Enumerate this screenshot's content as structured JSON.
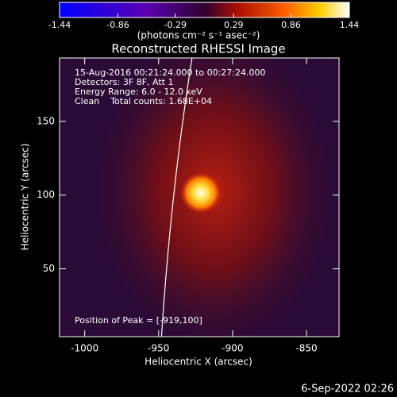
{
  "chart_data": {
    "type": "image",
    "title": "Reconstructed RHESSI Image",
    "colorbar": {
      "lim": [
        -1.44,
        1.44
      ],
      "ticks": [
        -1.44,
        -0.86,
        -0.29,
        0.29,
        0.86,
        1.44
      ],
      "label": "(photons cm⁻² s⁻¹ asec⁻²)"
    },
    "x_label": "Heliocentric X (arcsec)",
    "y_label": "Heliocentric Y (arcsec)",
    "xlim": [
      -1017,
      -828
    ],
    "ylim": [
      4,
      193
    ],
    "xticks": [
      -1000,
      -950,
      -900,
      -850
    ],
    "yticks": [
      50,
      100,
      150
    ],
    "annotations": [
      "15-Aug-2016 00:21:24.000 to 00:27:24.000",
      "Detectors: 3F 8F, Att 1",
      "Energy Range: 6.0 - 12.0 keV",
      "Clean    Total counts: 1.68E+04"
    ],
    "peak_label": "Position of Peak = [-919,100]",
    "footer": "6-Sep-2022 02:26"
  }
}
